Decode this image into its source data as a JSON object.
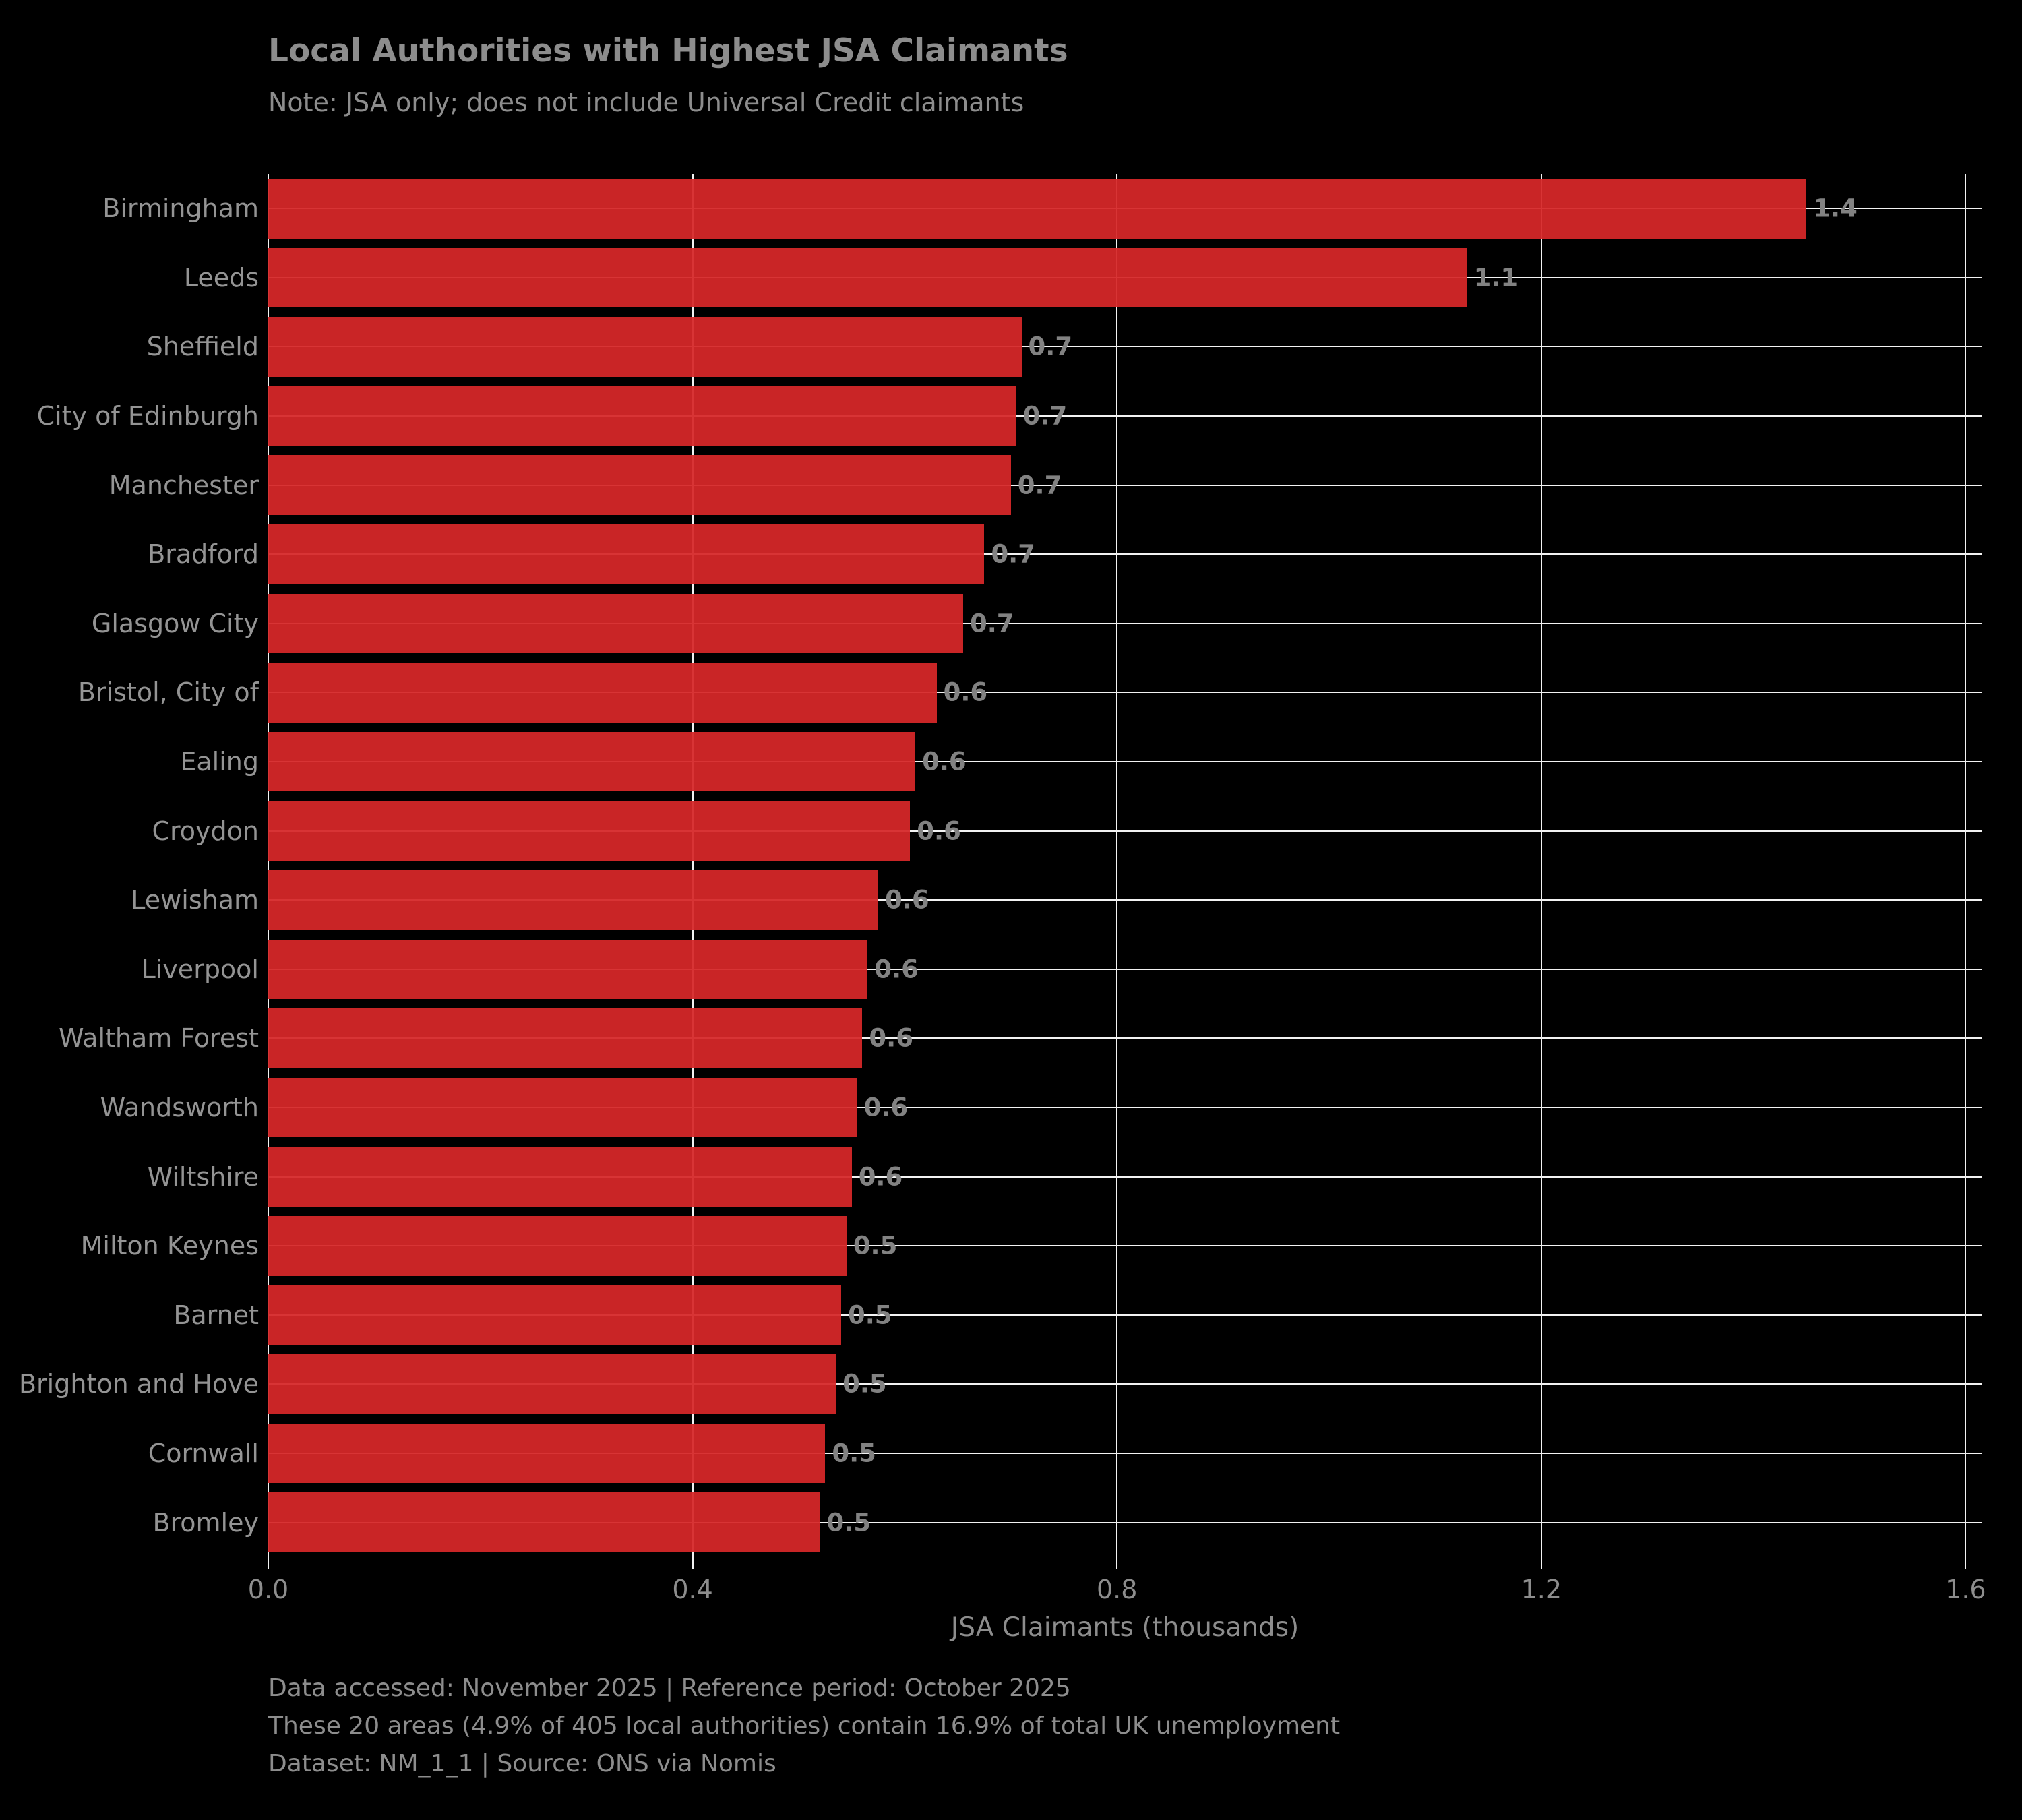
{
  "title": "Local Authorities with Highest JSA Claimants",
  "subtitle": "Note: JSA only; does not include Universal Credit claimants",
  "chart_data": {
    "type": "bar",
    "orientation": "horizontal",
    "title": "Local Authorities with Highest JSA Claimants",
    "subtitle": "Note: JSA only; does not include Universal Credit claimants",
    "categories": [
      "Birmingham",
      "Leeds",
      "Sheffield",
      "City of Edinburgh",
      "Manchester",
      "Bradford",
      "Glasgow City",
      "Bristol, City of",
      "Ealing",
      "Croydon",
      "Lewisham",
      "Liverpool",
      "Waltham Forest",
      "Wandsworth",
      "Wiltshire",
      "Milton Keynes",
      "Barnet",
      "Brighton and Hove",
      "Cornwall",
      "Bromley"
    ],
    "values": [
      1.45,
      1.13,
      0.71,
      0.705,
      0.7,
      0.675,
      0.655,
      0.63,
      0.61,
      0.605,
      0.575,
      0.565,
      0.56,
      0.555,
      0.55,
      0.545,
      0.54,
      0.535,
      0.525,
      0.52
    ],
    "value_labels": [
      "1.4",
      "1.1",
      "0.7",
      "0.7",
      "0.7",
      "0.7",
      "0.7",
      "0.6",
      "0.6",
      "0.6",
      "0.6",
      "0.6",
      "0.6",
      "0.6",
      "0.6",
      "0.5",
      "0.5",
      "0.5",
      "0.5",
      "0.5"
    ],
    "xlabel": "JSA Claimants (thousands)",
    "xlim": [
      0,
      1.615
    ],
    "xticks": [
      0.0,
      0.4,
      0.8,
      1.2,
      1.6
    ],
    "xtick_labels": [
      "0.0",
      "0.4",
      "0.8",
      "1.2",
      "1.6"
    ],
    "grid": true,
    "legend": "none",
    "bar_color": "#d62728",
    "background_color": "#000000",
    "grid_color": "#f2f2f2",
    "text_color": "#8d8d8d"
  },
  "footer": {
    "lines": [
      "Data accessed: November 2025 | Reference period: October 2025",
      "These 20 areas (4.9% of 405 local authorities) contain 16.9% of total UK unemployment",
      "Dataset: NM_1_1 | Source: ONS via Nomis"
    ]
  }
}
